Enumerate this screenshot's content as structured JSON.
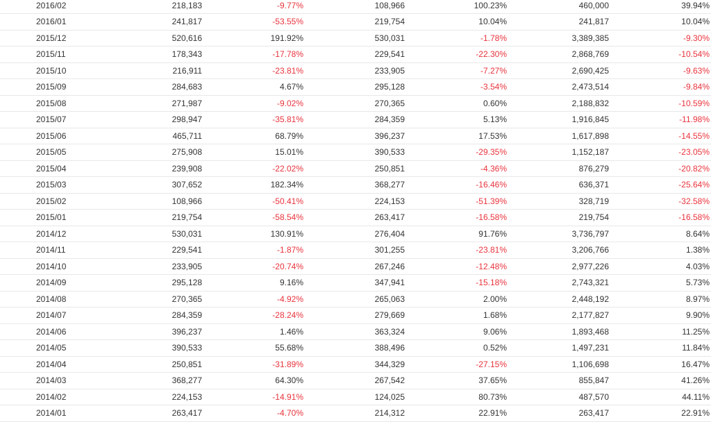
{
  "colors": {
    "negative": "#e8333c",
    "text": "#333333",
    "row_border": "#e8e8e8"
  },
  "table": {
    "rows": [
      [
        "2016/02",
        "218,183",
        "-9.77%",
        "108,966",
        "100.23%",
        "460,000",
        "39.94%"
      ],
      [
        "2016/01",
        "241,817",
        "-53.55%",
        "219,754",
        "10.04%",
        "241,817",
        "10.04%"
      ],
      [
        "2015/12",
        "520,616",
        "191.92%",
        "530,031",
        "-1.78%",
        "3,389,385",
        "-9.30%"
      ],
      [
        "2015/11",
        "178,343",
        "-17.78%",
        "229,541",
        "-22.30%",
        "2,868,769",
        "-10.54%"
      ],
      [
        "2015/10",
        "216,911",
        "-23.81%",
        "233,905",
        "-7.27%",
        "2,690,425",
        "-9.63%"
      ],
      [
        "2015/09",
        "284,683",
        "4.67%",
        "295,128",
        "-3.54%",
        "2,473,514",
        "-9.84%"
      ],
      [
        "2015/08",
        "271,987",
        "-9.02%",
        "270,365",
        "0.60%",
        "2,188,832",
        "-10.59%"
      ],
      [
        "2015/07",
        "298,947",
        "-35.81%",
        "284,359",
        "5.13%",
        "1,916,845",
        "-11.98%"
      ],
      [
        "2015/06",
        "465,711",
        "68.79%",
        "396,237",
        "17.53%",
        "1,617,898",
        "-14.55%"
      ],
      [
        "2015/05",
        "275,908",
        "15.01%",
        "390,533",
        "-29.35%",
        "1,152,187",
        "-23.05%"
      ],
      [
        "2015/04",
        "239,908",
        "-22.02%",
        "250,851",
        "-4.36%",
        "876,279",
        "-20.82%"
      ],
      [
        "2015/03",
        "307,652",
        "182.34%",
        "368,277",
        "-16.46%",
        "636,371",
        "-25.64%"
      ],
      [
        "2015/02",
        "108,966",
        "-50.41%",
        "224,153",
        "-51.39%",
        "328,719",
        "-32.58%"
      ],
      [
        "2015/01",
        "219,754",
        "-58.54%",
        "263,417",
        "-16.58%",
        "219,754",
        "-16.58%"
      ],
      [
        "2014/12",
        "530,031",
        "130.91%",
        "276,404",
        "91.76%",
        "3,736,797",
        "8.64%"
      ],
      [
        "2014/11",
        "229,541",
        "-1.87%",
        "301,255",
        "-23.81%",
        "3,206,766",
        "1.38%"
      ],
      [
        "2014/10",
        "233,905",
        "-20.74%",
        "267,246",
        "-12.48%",
        "2,977,226",
        "4.03%"
      ],
      [
        "2014/09",
        "295,128",
        "9.16%",
        "347,941",
        "-15.18%",
        "2,743,321",
        "5.73%"
      ],
      [
        "2014/08",
        "270,365",
        "-4.92%",
        "265,063",
        "2.00%",
        "2,448,192",
        "8.97%"
      ],
      [
        "2014/07",
        "284,359",
        "-28.24%",
        "279,669",
        "1.68%",
        "2,177,827",
        "9.90%"
      ],
      [
        "2014/06",
        "396,237",
        "1.46%",
        "363,324",
        "9.06%",
        "1,893,468",
        "11.25%"
      ],
      [
        "2014/05",
        "390,533",
        "55.68%",
        "388,496",
        "0.52%",
        "1,497,231",
        "11.84%"
      ],
      [
        "2014/04",
        "250,851",
        "-31.89%",
        "344,329",
        "-27.15%",
        "1,106,698",
        "16.47%"
      ],
      [
        "2014/03",
        "368,277",
        "64.30%",
        "267,542",
        "37.65%",
        "855,847",
        "41.26%"
      ],
      [
        "2014/02",
        "224,153",
        "-14.91%",
        "124,025",
        "80.73%",
        "487,570",
        "44.11%"
      ],
      [
        "2014/01",
        "263,417",
        "-4.70%",
        "214,312",
        "22.91%",
        "263,417",
        "22.91%"
      ]
    ]
  }
}
